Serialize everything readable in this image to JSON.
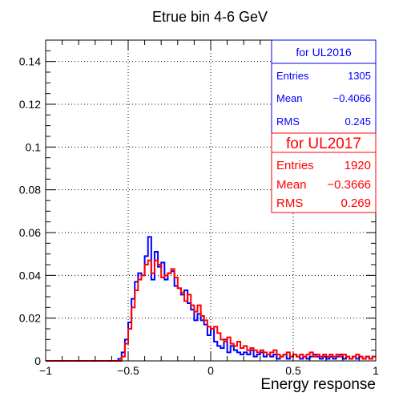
{
  "chart_data": {
    "type": "histogram",
    "title": "Etrue bin 4-6 GeV",
    "xlabel": "Energy response",
    "ylabel": "",
    "xlim": [
      -1,
      1
    ],
    "ylim": [
      0,
      0.15
    ],
    "x_ticks": [
      -1,
      -0.5,
      0,
      0.5,
      1
    ],
    "x_tick_labels": [
      "−1",
      "−0.5",
      "0",
      "0.5",
      "1"
    ],
    "y_ticks": [
      0,
      0.02,
      0.04,
      0.06,
      0.08,
      0.1,
      0.12,
      0.14
    ],
    "y_tick_labels": [
      "0",
      "0.02",
      "0.04",
      "0.06",
      "0.08",
      "0.1",
      "0.12",
      "0.14"
    ],
    "grid": true,
    "bins": {
      "start": -1,
      "width": 0.02,
      "count": 100
    },
    "series": [
      {
        "name": "for UL2016",
        "color": "#0000ff",
        "values": [
          0,
          0,
          0,
          0,
          0,
          0,
          0,
          0,
          0,
          0,
          0,
          0,
          0,
          0,
          0,
          0,
          0,
          0,
          0,
          0,
          0,
          0,
          0.001,
          0.004,
          0.01,
          0.018,
          0.029,
          0.037,
          0.041,
          0.04,
          0.049,
          0.058,
          0.038,
          0.051,
          0.044,
          0.046,
          0.038,
          0.041,
          0.042,
          0.035,
          0.034,
          0.031,
          0.033,
          0.027,
          0.024,
          0.019,
          0.022,
          0.019,
          0.017,
          0.012,
          0.015,
          0.009,
          0.007,
          0.006,
          0.01,
          0.004,
          0.007,
          0.005,
          0.004,
          0.003,
          0.004,
          0.003,
          0.005,
          0.002,
          0.003,
          0.004,
          0.002,
          0.003,
          0.002,
          0.003,
          0.001,
          0.002,
          0.003,
          0.001,
          0.002,
          0.003,
          0.002,
          0.001,
          0.002,
          0.001,
          0.002,
          0.003,
          0.002,
          0.001,
          0.002,
          0.001,
          0.002,
          0.001,
          0.002,
          0.003,
          0.001,
          0.002,
          0.001,
          0.002,
          0.001,
          0.002,
          0.001,
          0.002,
          0.001,
          0.002
        ]
      },
      {
        "name": "for UL2017",
        "color": "#ff0000",
        "values": [
          0,
          0,
          0,
          0,
          0,
          0,
          0,
          0,
          0,
          0,
          0,
          0,
          0,
          0,
          0,
          0,
          0,
          0,
          0,
          0,
          0,
          0,
          0,
          0.002,
          0.008,
          0.015,
          0.025,
          0.033,
          0.038,
          0.04,
          0.045,
          0.047,
          0.041,
          0.047,
          0.045,
          0.039,
          0.04,
          0.041,
          0.043,
          0.039,
          0.034,
          0.032,
          0.028,
          0.031,
          0.026,
          0.023,
          0.026,
          0.021,
          0.019,
          0.016,
          0.015,
          0.016,
          0.013,
          0.01,
          0.009,
          0.011,
          0.008,
          0.007,
          0.009,
          0.006,
          0.007,
          0.005,
          0.006,
          0.005,
          0.004,
          0.005,
          0.004,
          0.003,
          0.004,
          0.005,
          0.003,
          0.002,
          0.003,
          0.004,
          0.002,
          0.003,
          0.002,
          0.003,
          0.002,
          0.003,
          0.004,
          0.002,
          0.003,
          0.002,
          0.003,
          0.002,
          0.003,
          0.002,
          0.003,
          0.002,
          0.003,
          0.002,
          0.001,
          0.002,
          0.003,
          0.002,
          0.001,
          0.002,
          0.001,
          0.002
        ]
      }
    ]
  },
  "stats": {
    "ul2016": {
      "header": "for UL2016",
      "entries_label": "Entries",
      "entries": "1305",
      "mean_label": "Mean",
      "mean": "−0.4066",
      "rms_label": "RMS",
      "rms": "0.245",
      "color": "#0000ff"
    },
    "ul2017": {
      "header": "for UL2017",
      "entries_label": "Entries",
      "entries": "1920",
      "mean_label": "Mean",
      "mean": "−0.3666",
      "rms_label": "RMS",
      "rms": "0.269",
      "color": "#ff0000"
    }
  }
}
